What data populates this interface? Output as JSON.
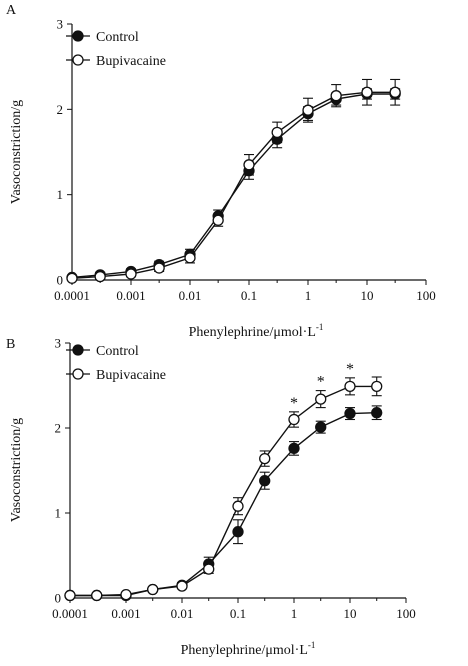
{
  "chart_data": [
    {
      "type": "line",
      "panel_label": "A",
      "xlabel": "Phenylephrine/μmol·L",
      "xlabel_superscript": "-1",
      "ylabel": "Vasoconstriction/g",
      "x_scale": "log",
      "xlim": [
        0.0001,
        100
      ],
      "ylim": [
        0,
        3
      ],
      "x_ticks": [
        "0.0001",
        "0.001",
        "0.01",
        "0.1",
        "1",
        "10",
        "100"
      ],
      "y_ticks": [
        "0",
        "1",
        "2",
        "3"
      ],
      "grid": false,
      "legend_position": "top-left",
      "x": [
        0.0001,
        0.0003,
        0.001,
        0.003,
        0.01,
        0.03,
        0.1,
        0.3,
        1,
        3,
        10,
        30
      ],
      "series": [
        {
          "name": "Control",
          "marker": "filled-circle",
          "values": [
            0.03,
            0.06,
            0.1,
            0.18,
            0.3,
            0.75,
            1.28,
            1.65,
            1.95,
            2.12,
            2.18,
            2.18
          ],
          "errors": [
            0.02,
            0.03,
            0.03,
            0.04,
            0.06,
            0.07,
            0.1,
            0.1,
            0.08,
            0.07,
            0.06,
            0.06
          ],
          "significant": []
        },
        {
          "name": "Bupivacaine",
          "marker": "open-circle",
          "values": [
            0.02,
            0.04,
            0.07,
            0.14,
            0.26,
            0.7,
            1.35,
            1.73,
            1.99,
            2.16,
            2.2,
            2.2
          ],
          "errors": [
            0.02,
            0.03,
            0.03,
            0.04,
            0.06,
            0.07,
            0.12,
            0.12,
            0.14,
            0.13,
            0.15,
            0.15
          ],
          "significant": []
        }
      ]
    },
    {
      "type": "line",
      "panel_label": "B",
      "xlabel": "Phenylephrine/μmol·L",
      "xlabel_superscript": "-1",
      "ylabel": "Vasoconstriction/g",
      "x_scale": "log",
      "xlim": [
        0.0001,
        100
      ],
      "ylim": [
        0,
        3
      ],
      "x_ticks": [
        "0.0001",
        "0.001",
        "0.01",
        "0.1",
        "1",
        "10",
        "100"
      ],
      "y_ticks": [
        "0",
        "1",
        "2",
        "3"
      ],
      "grid": false,
      "legend_position": "top-left",
      "significance_marker": "*",
      "x": [
        0.0001,
        0.0003,
        0.001,
        0.003,
        0.01,
        0.03,
        0.1,
        0.3,
        1,
        3,
        10,
        30
      ],
      "series": [
        {
          "name": "Control",
          "marker": "filled-circle",
          "values": [
            0.03,
            0.03,
            0.03,
            0.1,
            0.15,
            0.4,
            0.78,
            1.38,
            1.76,
            2.01,
            2.17,
            2.18
          ],
          "errors": [
            0.01,
            0.01,
            0.01,
            0.02,
            0.03,
            0.08,
            0.14,
            0.1,
            0.08,
            0.07,
            0.07,
            0.08
          ],
          "significant": []
        },
        {
          "name": "Bupivacaine",
          "marker": "open-circle",
          "values": [
            0.03,
            0.03,
            0.04,
            0.1,
            0.14,
            0.34,
            1.08,
            1.64,
            2.1,
            2.34,
            2.49,
            2.49
          ],
          "errors": [
            0.01,
            0.01,
            0.01,
            0.02,
            0.03,
            0.05,
            0.1,
            0.09,
            0.09,
            0.1,
            0.1,
            0.11
          ],
          "significant": [
            false,
            false,
            false,
            false,
            false,
            false,
            false,
            false,
            true,
            true,
            true,
            false
          ]
        }
      ]
    }
  ]
}
